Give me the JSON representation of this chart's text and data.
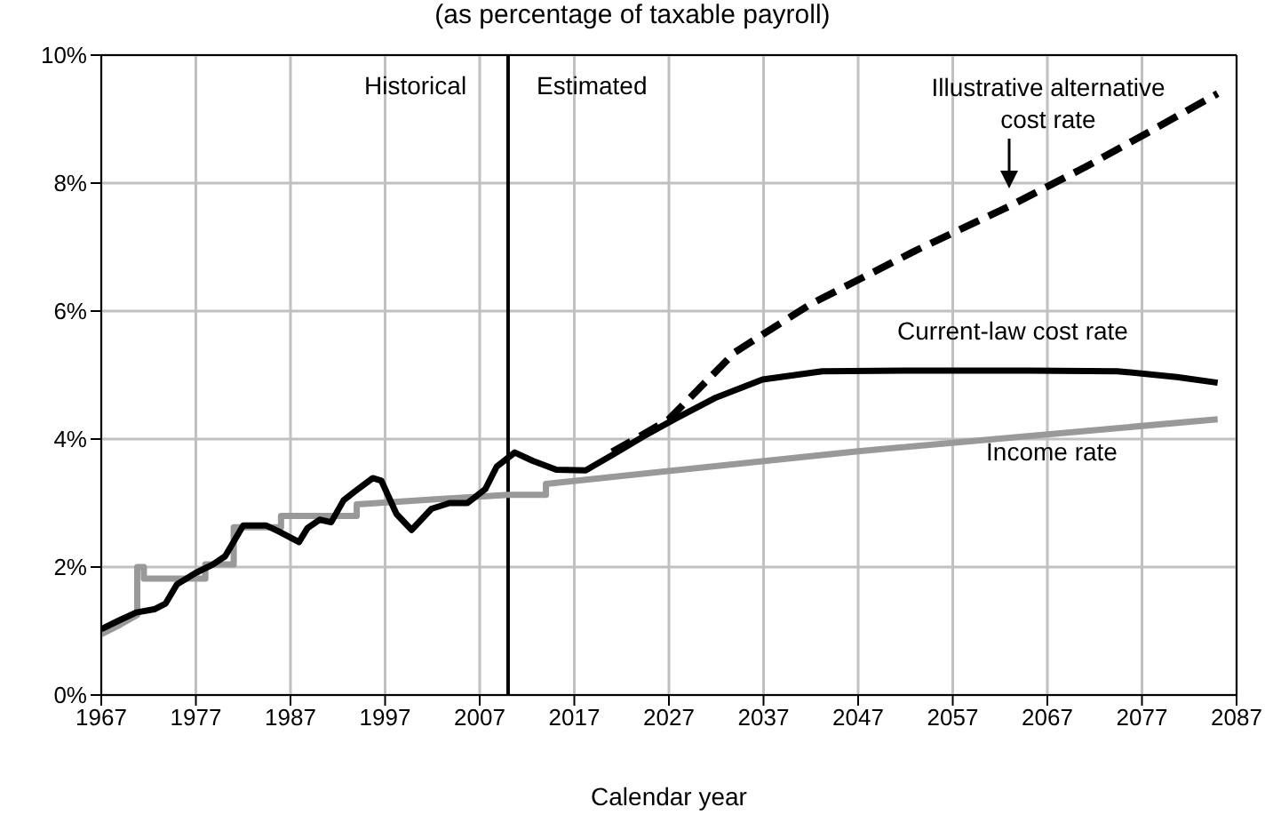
{
  "chart_data": {
    "type": "line",
    "title": "(as percentage of taxable payroll)",
    "xlabel": "Calendar year",
    "xlim": [
      1967,
      2087
    ],
    "xticks": [
      1967,
      1977,
      1987,
      1997,
      2007,
      2017,
      2027,
      2037,
      2047,
      2057,
      2067,
      2077,
      2087
    ],
    "ylim": [
      0,
      10
    ],
    "yticks": [
      {
        "value": 0,
        "label": "0%"
      },
      {
        "value": 2,
        "label": "2%"
      },
      {
        "value": 4,
        "label": "4%"
      },
      {
        "value": 6,
        "label": "6%"
      },
      {
        "value": 8,
        "label": "8%"
      },
      {
        "value": 10,
        "label": "10%"
      }
    ],
    "grid": true,
    "marker": "none",
    "annotations": [
      "Historical",
      "Estimated"
    ],
    "ref_lines": [
      {
        "axis": "x",
        "value": 2010,
        "label": null,
        "color": "#000000",
        "line_style": "solid"
      }
    ],
    "series": [
      {
        "name": "Income rate",
        "color": "#999999",
        "line_style": "solid",
        "x": [
          1967,
          1969,
          1970.8,
          1970.8,
          1971.5,
          1971.5,
          1978,
          1978,
          1981,
          1981,
          1986,
          1986,
          1994,
          1994,
          2010,
          2014,
          2014,
          2047,
          2085
        ],
        "values": [
          0.95,
          1.1,
          1.25,
          2.0,
          2.0,
          1.82,
          1.82,
          2.04,
          2.04,
          2.62,
          2.62,
          2.8,
          2.8,
          2.98,
          3.13,
          3.13,
          3.3,
          3.81,
          4.31
        ]
      },
      {
        "name": "Illustrative alternative cost rate",
        "color": "#000000",
        "line_style": "dashed",
        "x": [
          2021,
          2024,
          2027,
          2034,
          2042,
          2053,
          2063,
          2071,
          2078,
          2085
        ],
        "values": [
          3.8,
          4.05,
          4.31,
          5.36,
          6.11,
          6.94,
          7.64,
          8.25,
          8.82,
          9.4
        ]
      },
      {
        "name": "Current-law cost rate",
        "color": "#000000",
        "line_style": "solid",
        "x": [
          1967,
          1968.8,
          1970.7,
          1972.6,
          1973.8,
          1975,
          1977,
          1978.8,
          1980.1,
          1982,
          1984.4,
          1985.7,
          1987.9,
          1988.8,
          1990.1,
          1991.3,
          1992.6,
          1993.8,
          1995.7,
          1996.6,
          1998.2,
          1999.8,
          2001.9,
          2003.8,
          2005.7,
          2007.6,
          2008.8,
          2010.7,
          2012.6,
          2015.1,
          2018.2,
          2021,
          2024.4,
          2027.6,
          2032,
          2036.9,
          2043.2,
          2052.6,
          2065,
          2074.4,
          2080.7,
          2085
        ],
        "values": [
          1.03,
          1.16,
          1.29,
          1.34,
          1.43,
          1.73,
          1.91,
          2.04,
          2.17,
          2.65,
          2.65,
          2.56,
          2.39,
          2.61,
          2.74,
          2.7,
          3.04,
          3.18,
          3.39,
          3.35,
          2.83,
          2.58,
          2.91,
          3.0,
          3.0,
          3.22,
          3.57,
          3.79,
          3.66,
          3.52,
          3.51,
          3.75,
          4.05,
          4.31,
          4.65,
          4.93,
          5.06,
          5.07,
          5.07,
          5.06,
          4.97,
          4.88
        ]
      }
    ]
  }
}
